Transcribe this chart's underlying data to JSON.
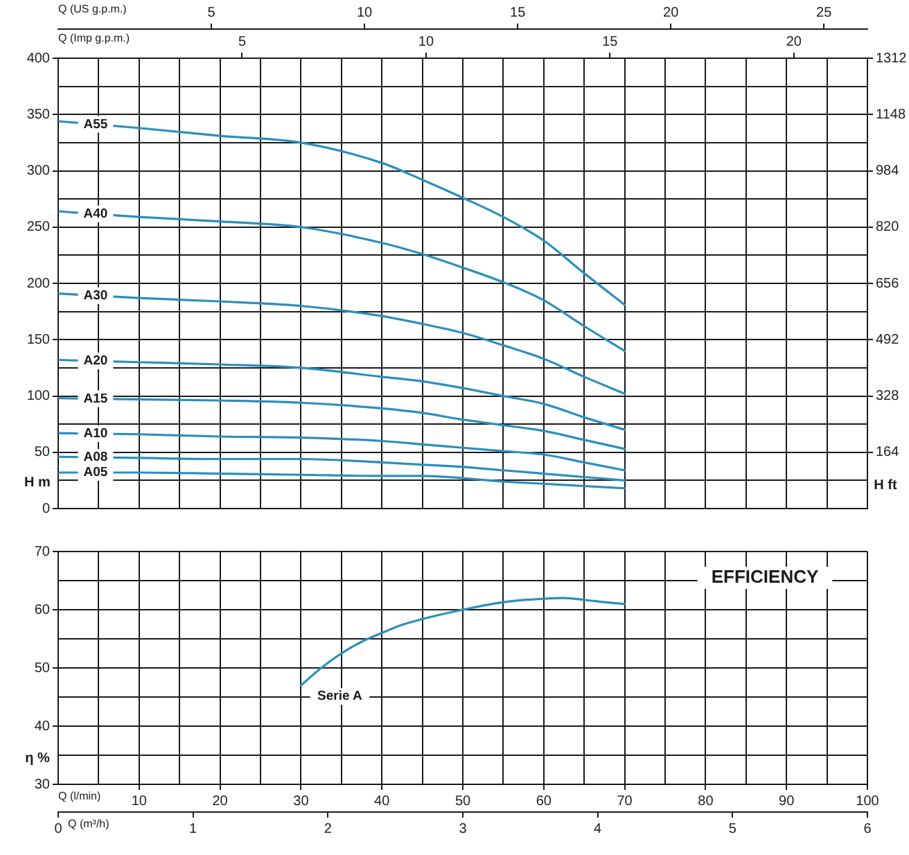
{
  "chart_data": [
    {
      "type": "line",
      "grid": true,
      "xlabel": "Q (Imp g.p.m.)",
      "xlim": [
        0,
        22
      ],
      "xticks": [
        {
          "value": 1.1,
          "label": null
        },
        {
          "value": 2.2,
          "label": null
        },
        {
          "value": 3.3,
          "label": null
        },
        {
          "value": 4.4,
          "label": null
        },
        5,
        {
          "value": 5.5,
          "label": null
        },
        {
          "value": 6.6,
          "label": null
        },
        {
          "value": 7.7,
          "label": null
        },
        {
          "value": 8.8,
          "label": null
        },
        {
          "value": 9.9,
          "label": null
        },
        10,
        {
          "value": 11,
          "label": null
        },
        {
          "value": 12.1,
          "label": null
        },
        {
          "value": 13.2,
          "label": null
        },
        {
          "value": 14.3,
          "label": null
        },
        15,
        {
          "value": 15.4,
          "label": null
        },
        {
          "value": 16.5,
          "label": null
        },
        {
          "value": 17.6,
          "label": null
        },
        {
          "value": 18.7,
          "label": null
        },
        {
          "value": 19.8,
          "label": null
        },
        20,
        {
          "value": 20.9,
          "label": null
        },
        {
          "value": 22,
          "label": null
        }
      ],
      "x2label": "Q (US g.p.m.)",
      "x2lim": [
        0,
        26.42
      ],
      "x2ticks": [
        5,
        10,
        15,
        20,
        25
      ],
      "ylabel": "H m",
      "ylim": [
        0,
        400
      ],
      "yticks": [
        0,
        {
          "value": 25,
          "label": null
        },
        50,
        {
          "value": 75,
          "label": null
        },
        100,
        {
          "value": 125,
          "label": null
        },
        150,
        {
          "value": 175,
          "label": null
        },
        200,
        {
          "value": 225,
          "label": null
        },
        250,
        {
          "value": 275,
          "label": null
        },
        300,
        {
          "value": 325,
          "label": null
        },
        350,
        {
          "value": 375,
          "label": null
        },
        400
      ],
      "y2label": "H ft",
      "y2lim": [
        0,
        1312
      ],
      "y2ticks": [
        164,
        328,
        492,
        656,
        820,
        984,
        1148,
        1312
      ],
      "x": [
        0,
        2.2,
        4.4,
        6.6,
        8.8,
        9.9,
        11,
        12.1,
        13.2,
        14.3,
        15.4
      ],
      "series": [
        {
          "name": "A55",
          "color": "#2a8fbd",
          "values": [
            344,
            338,
            331,
            325,
            307,
            292,
            276,
            259,
            238,
            209,
            181
          ]
        },
        {
          "name": "A40",
          "color": "#2a8fbd",
          "values": [
            264,
            259,
            255,
            250,
            236,
            226,
            214,
            201,
            185,
            162,
            140
          ]
        },
        {
          "name": "A30",
          "color": "#2a8fbd",
          "values": [
            191,
            187,
            184,
            180,
            171,
            164,
            156,
            145,
            133,
            117,
            102
          ]
        },
        {
          "name": "A20",
          "color": "#2a8fbd",
          "values": [
            132,
            130,
            128,
            125,
            117,
            113,
            107,
            100,
            93,
            81,
            70
          ]
        },
        {
          "name": "A15",
          "color": "#2a8fbd",
          "values": [
            98,
            97,
            96,
            94,
            89,
            85,
            79,
            74,
            69,
            61,
            53
          ]
        },
        {
          "name": "A10",
          "color": "#2a8fbd",
          "values": [
            67,
            66,
            64,
            63,
            60,
            57,
            54,
            51,
            48,
            41,
            34
          ]
        },
        {
          "name": "A08",
          "color": "#2a8fbd",
          "values": [
            46,
            45,
            44,
            44,
            41,
            39,
            37,
            34,
            31,
            28,
            25
          ]
        },
        {
          "name": "A05",
          "color": "#2a8fbd",
          "values": [
            32,
            32,
            31,
            30,
            29,
            29,
            27,
            24,
            22,
            20,
            18
          ]
        }
      ]
    },
    {
      "type": "line",
      "title": "EFFICIENCY",
      "grid": true,
      "xlabel": "Q (l/min)",
      "xlim": [
        0,
        100
      ],
      "xticks": [
        {
          "value": 5,
          "label": null
        },
        10,
        {
          "value": 15,
          "label": null
        },
        20,
        {
          "value": 25,
          "label": null
        },
        30,
        {
          "value": 35,
          "label": null
        },
        40,
        {
          "value": 45,
          "label": null
        },
        50,
        {
          "value": 55,
          "label": null
        },
        60,
        {
          "value": 65,
          "label": null
        },
        70,
        {
          "value": 75,
          "label": null
        },
        80,
        {
          "value": 85,
          "label": null
        },
        90,
        {
          "value": 95,
          "label": null
        },
        100
      ],
      "x2label": "Q (m³/h)",
      "x2lim": [
        0,
        6
      ],
      "x2ticks": [
        0,
        1,
        2,
        3,
        4,
        5,
        6
      ],
      "ylabel": "η %",
      "ylim": [
        30,
        70
      ],
      "yticks": [
        30,
        {
          "value": 35,
          "label": null
        },
        40,
        {
          "value": 45,
          "label": null
        },
        50,
        {
          "value": 55,
          "label": null
        },
        60,
        {
          "value": 65,
          "label": null
        },
        70
      ],
      "x": [
        30,
        32.5,
        35,
        37.5,
        40,
        42.5,
        45,
        50,
        55,
        60,
        62.5,
        65,
        67.5,
        70
      ],
      "series": [
        {
          "name": "Serie A",
          "color": "#2a8fbd",
          "values": [
            47,
            50,
            52.5,
            54.5,
            56,
            57.4,
            58.4,
            60,
            61.3,
            61.9,
            62,
            61.7,
            61.3,
            61
          ]
        }
      ]
    }
  ]
}
